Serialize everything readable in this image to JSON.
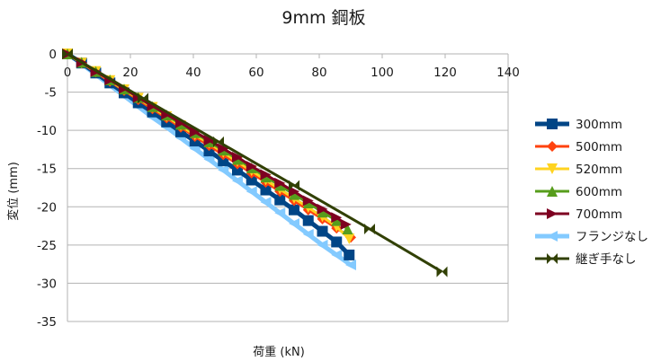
{
  "chart_data": {
    "type": "line",
    "title": "9mm 鋼板",
    "xlabel": "荷重 (kN)",
    "ylabel": "変位 (mm)",
    "xlim": [
      0,
      140
    ],
    "ylim": [
      -35,
      0
    ],
    "x_ticks": [
      "0",
      "20",
      "40",
      "60",
      "80",
      "100",
      "120",
      "140"
    ],
    "y_ticks": [
      "0",
      "-5",
      "-10",
      "-15",
      "-20",
      "-25",
      "-30",
      "-35"
    ],
    "grid": "horizontal",
    "legend_position": "right",
    "series": [
      {
        "name": "フランジなし",
        "color": "#83caff",
        "marker": "triangle-left",
        "width": 5,
        "x": [
          0,
          4.5,
          9,
          13.5,
          18,
          22.5,
          27,
          31.5,
          36,
          40.5,
          45,
          49.5,
          54,
          58.5,
          63,
          67.5,
          72,
          76.5,
          81,
          85.5,
          90
        ],
        "y": [
          0,
          -1.3,
          -2.7,
          -4.1,
          -5.5,
          -6.9,
          -8.3,
          -9.6,
          -11.0,
          -12.4,
          -13.8,
          -15.2,
          -16.6,
          -18.0,
          -19.4,
          -20.8,
          -22.2,
          -23.6,
          -25.0,
          -26.3,
          -27.6
        ]
      },
      {
        "name": "300mm",
        "color": "#004586",
        "marker": "square",
        "width": 5,
        "x": [
          0,
          4.5,
          9,
          13.5,
          18,
          22.5,
          27,
          31.5,
          36,
          40.5,
          45,
          49.5,
          54,
          58.5,
          63,
          67.5,
          72,
          76.5,
          81,
          85.5,
          89.5
        ],
        "y": [
          0,
          -1.2,
          -2.5,
          -3.8,
          -5.1,
          -6.4,
          -7.6,
          -8.9,
          -10.2,
          -11.4,
          -12.7,
          -14.0,
          -15.2,
          -16.5,
          -17.8,
          -19.1,
          -20.4,
          -21.8,
          -23.2,
          -24.6,
          -26.3
        ]
      },
      {
        "name": "500mm",
        "color": "#ff420e",
        "marker": "diamond",
        "width": 3,
        "x": [
          0,
          4.5,
          9,
          13.5,
          18,
          22.5,
          27,
          31.5,
          36,
          40.5,
          45,
          49.5,
          54,
          58.5,
          63,
          67.5,
          72,
          76.5,
          81,
          85.5,
          90
        ],
        "y": [
          0,
          -1.2,
          -2.4,
          -3.6,
          -4.8,
          -6.0,
          -7.2,
          -8.4,
          -9.6,
          -10.8,
          -12.0,
          -13.2,
          -14.4,
          -15.6,
          -16.8,
          -18.0,
          -19.2,
          -20.4,
          -21.6,
          -22.8,
          -24.0
        ]
      },
      {
        "name": "520mm",
        "color": "#ffd320",
        "marker": "triangle-down",
        "width": 3,
        "x": [
          0,
          4.5,
          9,
          13.5,
          18,
          22.5,
          27,
          31.5,
          36,
          40.5,
          45,
          49.5,
          54,
          58.5,
          63,
          67.5,
          72,
          76.5,
          81,
          85.5,
          89.5
        ],
        "y": [
          0,
          -1.2,
          -2.3,
          -3.5,
          -4.7,
          -5.8,
          -7.0,
          -8.2,
          -9.4,
          -10.6,
          -11.7,
          -12.9,
          -14.1,
          -15.3,
          -16.5,
          -17.7,
          -18.9,
          -20.1,
          -21.3,
          -22.6,
          -24.2
        ]
      },
      {
        "name": "600mm",
        "color": "#579d1c",
        "marker": "triangle-up",
        "width": 3,
        "x": [
          0,
          4.5,
          9,
          13.5,
          18,
          22.5,
          27,
          31.5,
          36,
          40.5,
          45,
          49.5,
          54,
          58.5,
          63,
          67.5,
          72,
          76.5,
          81,
          85.5,
          89
        ],
        "y": [
          0,
          -1.1,
          -2.3,
          -3.4,
          -4.6,
          -5.7,
          -6.9,
          -8.0,
          -9.2,
          -10.3,
          -11.5,
          -12.6,
          -13.8,
          -14.9,
          -16.1,
          -17.2,
          -18.4,
          -19.5,
          -20.7,
          -21.8,
          -22.9
        ]
      },
      {
        "name": "700mm",
        "color": "#7e0021",
        "marker": "triangle-right",
        "width": 3,
        "x": [
          0,
          4.5,
          9,
          13.5,
          18,
          22.5,
          27,
          31.5,
          36,
          40.5,
          45,
          49.5,
          54,
          58.5,
          63,
          67.5,
          72,
          76.5,
          81,
          85.5,
          88.5
        ],
        "y": [
          0,
          -1.1,
          -2.3,
          -3.4,
          -4.5,
          -5.7,
          -6.8,
          -7.9,
          -9.0,
          -10.2,
          -11.3,
          -12.4,
          -13.5,
          -14.7,
          -15.8,
          -16.9,
          -18.0,
          -19.2,
          -20.3,
          -21.4,
          -22.3
        ]
      },
      {
        "name": "継ぎ手なし",
        "color": "#314004",
        "marker": "bowtie",
        "width": 3,
        "x": [
          0,
          24,
          48,
          72,
          96,
          119
        ],
        "y": [
          0,
          -5.8,
          -11.5,
          -17.2,
          -22.9,
          -28.5
        ]
      }
    ],
    "legend_order": [
      "300mm",
      "500mm",
      "520mm",
      "600mm",
      "700mm",
      "フランジなし",
      "継ぎ手なし"
    ]
  }
}
